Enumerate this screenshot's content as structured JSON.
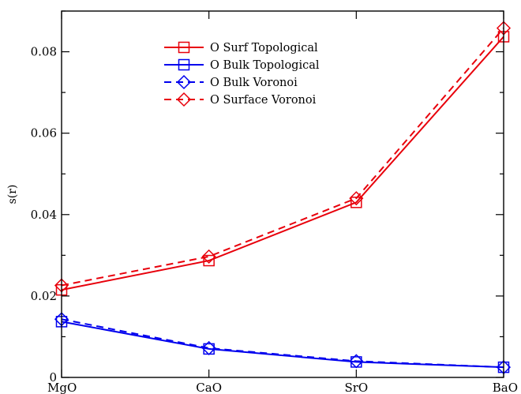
{
  "chart_data": {
    "type": "line",
    "title": "",
    "xlabel": "",
    "ylabel": "s(r)",
    "categories": [
      "MgO",
      "CaO",
      "SrO",
      "BaO"
    ],
    "ylim": [
      0,
      0.09
    ],
    "yticks": [
      "0",
      "0.02",
      "0.04",
      "0.06",
      "0.08"
    ],
    "ytick_values": [
      0,
      0.02,
      0.04,
      0.06,
      0.08
    ],
    "grid": false,
    "legend_position": "top-center",
    "series": [
      {
        "name": "O Surf Topological",
        "values": [
          0.0215,
          0.0287,
          0.043,
          0.0837
        ],
        "color": "#e8000b",
        "dash": "solid",
        "marker": "square"
      },
      {
        "name": "O Bulk Topological",
        "values": [
          0.0137,
          0.007,
          0.0038,
          0.0025
        ],
        "color": "#0000ee",
        "dash": "solid",
        "marker": "square"
      },
      {
        "name": "O Bulk Voronoi",
        "values": [
          0.0143,
          0.0072,
          0.004,
          0.0025
        ],
        "color": "#0000ee",
        "dash": "dashed",
        "marker": "diamond"
      },
      {
        "name": "O Surface Voronoi",
        "values": [
          0.0226,
          0.0297,
          0.044,
          0.0858
        ],
        "color": "#e8000b",
        "dash": "dashed",
        "marker": "diamond"
      }
    ]
  }
}
